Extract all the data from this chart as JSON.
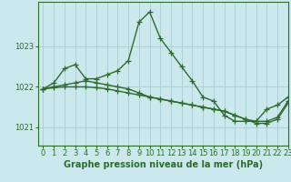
{
  "title": "Graphe pression niveau de la mer (hPa)",
  "bg_color": "#cbe8ec",
  "grid_color": "#a8cdd4",
  "line_color": "#2d6b2d",
  "xlim": [
    -0.5,
    23
  ],
  "ylim": [
    1020.55,
    1024.1
  ],
  "yticks": [
    1021,
    1022,
    1023
  ],
  "xticks": [
    0,
    1,
    2,
    3,
    4,
    5,
    6,
    7,
    8,
    9,
    10,
    11,
    12,
    13,
    14,
    15,
    16,
    17,
    18,
    19,
    20,
    21,
    22,
    23
  ],
  "series1_x": [
    0,
    1,
    2,
    3,
    4,
    5,
    6,
    7,
    8,
    9,
    10,
    11,
    12,
    13,
    14,
    15,
    16,
    17,
    18,
    19,
    20,
    21,
    22,
    23
  ],
  "series1_y": [
    1021.95,
    1022.1,
    1022.45,
    1022.55,
    1022.2,
    1022.2,
    1022.3,
    1022.4,
    1022.65,
    1023.6,
    1023.85,
    1023.2,
    1022.85,
    1022.5,
    1022.15,
    1021.75,
    1021.65,
    1021.3,
    1021.15,
    1021.15,
    1021.15,
    1021.45,
    1021.55,
    1021.75
  ],
  "series2_x": [
    0,
    1,
    2,
    3,
    4,
    5,
    6,
    7,
    8,
    9,
    10,
    11,
    12,
    13,
    14,
    15,
    16,
    17,
    18,
    19,
    20,
    21,
    22,
    23
  ],
  "series2_y": [
    1021.95,
    1022.0,
    1022.05,
    1022.1,
    1022.15,
    1022.1,
    1022.05,
    1022.0,
    1021.95,
    1021.85,
    1021.75,
    1021.7,
    1021.65,
    1021.6,
    1021.55,
    1021.5,
    1021.45,
    1021.4,
    1021.3,
    1021.2,
    1021.15,
    1021.15,
    1021.25,
    1021.65
  ],
  "series3_x": [
    0,
    1,
    2,
    3,
    4,
    5,
    6,
    7,
    8,
    9,
    10,
    11,
    12,
    13,
    14,
    15,
    16,
    17,
    18,
    19,
    20,
    21,
    22,
    23
  ],
  "series3_y": [
    1021.95,
    1021.98,
    1022.0,
    1022.0,
    1022.0,
    1021.98,
    1021.95,
    1021.9,
    1021.85,
    1021.8,
    1021.75,
    1021.7,
    1021.65,
    1021.6,
    1021.55,
    1021.5,
    1021.45,
    1021.4,
    1021.3,
    1021.2,
    1021.1,
    1021.1,
    1021.2,
    1021.6
  ],
  "marker": "+",
  "markersize": 4,
  "linewidth": 1.0,
  "title_fontsize": 7,
  "tick_fontsize": 6
}
